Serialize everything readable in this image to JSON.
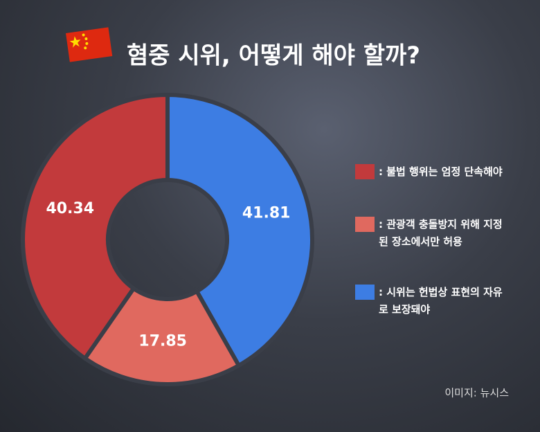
{
  "chart_data": {
    "type": "pie",
    "donut": true,
    "title": "혐중 시위, 어떻게 해야 할까?",
    "categories": [
      ": 시위는 헌법상 표현의 자유로 보장돼야",
      ": 관광객 충돌방지 위해 지정된 장소에서만 허용",
      ": 불법 행위는 엄정 단속해야"
    ],
    "values": [
      41.81,
      17.85,
      40.34
    ],
    "colors": [
      "#3d7de3",
      "#e0695f",
      "#c23a3c"
    ],
    "legend_order": [
      2,
      1,
      0
    ],
    "source": "이미지: 뉴시스"
  }
}
